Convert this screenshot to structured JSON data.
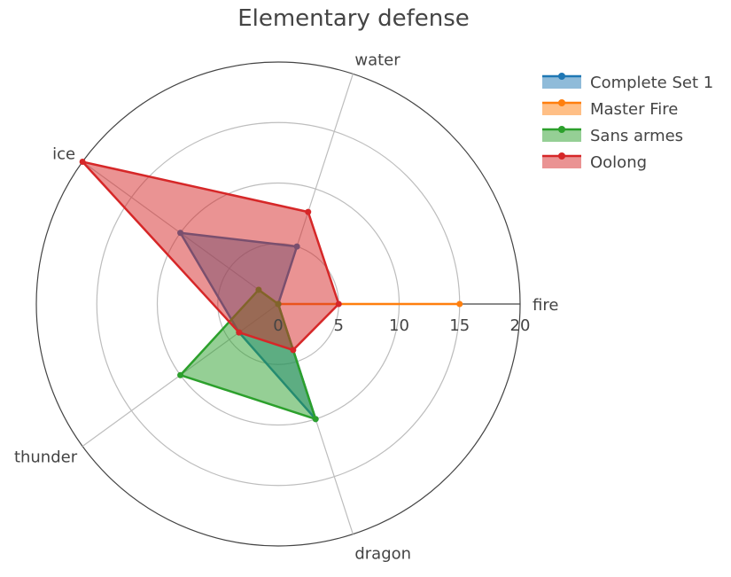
{
  "chart_data": {
    "type": "radar",
    "title": "Elementary defense",
    "axes": [
      "fire",
      "water",
      "ice",
      "thunder",
      "dragon"
    ],
    "rlim": [
      0,
      20
    ],
    "rticks": [
      0,
      5,
      10,
      15,
      20
    ],
    "grid": true,
    "legend_position": "top-right",
    "series": [
      {
        "name": "Complete Set 1",
        "values": [
          0,
          5,
          10,
          4,
          10
        ],
        "color": "#1f77b4"
      },
      {
        "name": "Master Fire",
        "values": [
          15,
          0,
          2,
          0,
          0
        ],
        "color": "#ff7f0e"
      },
      {
        "name": "Sans armes",
        "values": [
          0,
          0,
          2,
          10,
          10
        ],
        "color": "#2ca02c"
      },
      {
        "name": "Oolong",
        "values": [
          5,
          8,
          20,
          4,
          4
        ],
        "color": "#d62728"
      }
    ]
  }
}
